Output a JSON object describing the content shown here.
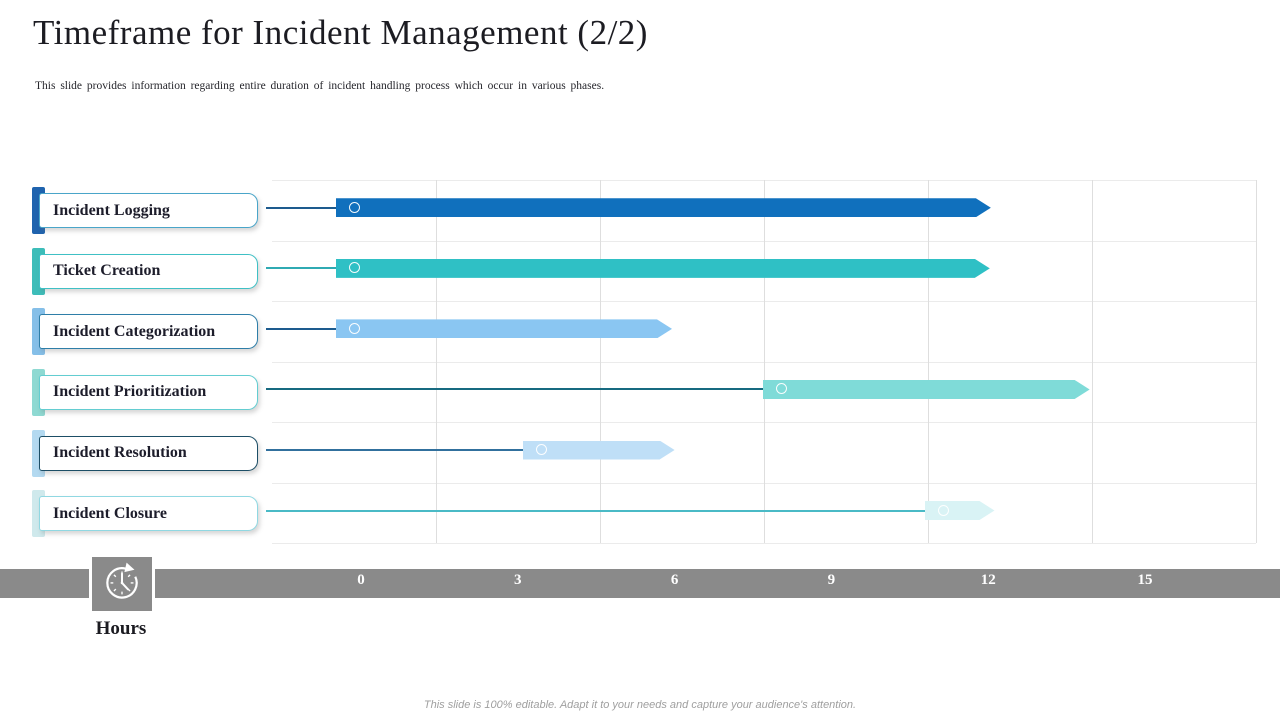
{
  "slide": {
    "title": "Timeframe for Incident Management (2/2)",
    "subtitle": "This slide provides information regarding entire duration of incident handling process which occur in various phases.",
    "footer": "This slide is 100% editable. Adapt it to your needs and capture your audience's attention.",
    "axis_unit_label": "Hours",
    "axis_icon": "clock-history-icon"
  },
  "colors": {
    "ribbon_gray": "#8a8a8a",
    "grid_vertical": "#dedede",
    "grid_horizontal": "#ebebeb",
    "title_text": "#1c1c22",
    "tick_text": "#ffffff"
  },
  "chart_data": {
    "type": "bar",
    "subtype": "horizontal-gantt-arrow-bars",
    "title": "Timeframe for Incident Management",
    "xlabel": "Hours",
    "x_ticks": [
      "0",
      "3",
      "6",
      "9",
      "12",
      "15"
    ],
    "x_range_hours": [
      0,
      15
    ],
    "grid": true,
    "legend": "none",
    "categories": [
      "Incident Logging",
      "Ticket Creation",
      "Incident Categorization",
      "Incident Prioritization",
      "Incident Resolution",
      "Incident Closure"
    ],
    "bars": [
      {
        "label": "Incident Logging",
        "start_h": 0,
        "end_h": 12,
        "v_start": -0.48,
        "v_end": 12.05,
        "bar_color": "#1070bd",
        "line_color": "#1d5b8e",
        "tab_color": "#1f63ae",
        "box_border": "#49a5c9"
      },
      {
        "label": "Ticket Creation",
        "start_h": 0,
        "end_h": 12,
        "v_start": -0.48,
        "v_end": 12.03,
        "bar_color": "#2fc0c5",
        "line_color": "#2faab3",
        "tab_color": "#3dbdb9",
        "box_border": "#3fc0c5"
      },
      {
        "label": "Incident Categorization",
        "start_h": 0,
        "end_h": 6,
        "v_start": -0.48,
        "v_end": 5.95,
        "bar_color": "#8ac6f2",
        "line_color": "#1d5b8e",
        "tab_color": "#85bfe8",
        "box_border": "#2e7ea8"
      },
      {
        "label": "Incident Prioritization",
        "start_h": 8,
        "end_h": 14,
        "v_start": 7.69,
        "v_end": 13.94,
        "bar_color": "#7fdbd8",
        "line_color": "#176a80",
        "tab_color": "#8ed9d2",
        "box_border": "#63cdd1"
      },
      {
        "label": "Incident Resolution",
        "start_h": 3,
        "end_h": 6,
        "v_start": 3.09,
        "v_end": 6.0,
        "bar_color": "#bfdff7",
        "line_color": "#31709d",
        "tab_color": "#b3d9f0",
        "box_border": "#1c4e66"
      },
      {
        "label": "Incident Closure",
        "start_h": 11,
        "end_h": 12,
        "v_start": 10.79,
        "v_end": 12.12,
        "bar_color": "#d9f3f5",
        "line_color": "#4abac6",
        "tab_color": "#cfe9ec",
        "box_border": "#90d8e2"
      }
    ]
  }
}
